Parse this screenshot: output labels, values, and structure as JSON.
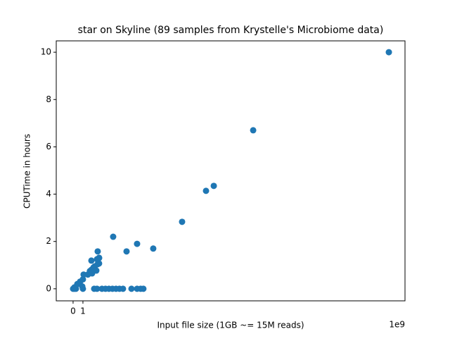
{
  "chart_data": {
    "type": "scatter",
    "title": "star on Skyline (89 samples from Krystelle's Microbiome data)",
    "xlabel": "Input file size (1GB ~= 15M reads)",
    "ylabel": "CPUTime in hours",
    "x_offset_label": "1e9",
    "color": "#1f77b4",
    "xlim": [
      -1.71,
      33.71
    ],
    "ylim": [
      -0.51,
      10.48
    ],
    "xticks": [
      0,
      1
    ],
    "yticks": [
      0,
      2,
      4,
      6,
      8,
      10
    ],
    "x": [
      32.07,
      18.29,
      14.29,
      13.5,
      11.07,
      8.14,
      6.5,
      5.43,
      4.07,
      2.5,
      2.64,
      0,
      0.14,
      0.29,
      1,
      2.14,
      2.43,
      2.93,
      3.29,
      3.64,
      4,
      4.36,
      4.71,
      5.07,
      5.93,
      6.5,
      6.86,
      7.14,
      0.14,
      0.43,
      0.71,
      1,
      1.07,
      0.93,
      1.5,
      1.71,
      1.86,
      1.93,
      2.07,
      2.21,
      2.36,
      2.5,
      2.64,
      1.86,
      2.64,
      2.43
    ],
    "values": [
      10,
      6.7,
      4.35,
      4.14,
      2.83,
      1.7,
      1.9,
      1.58,
      2.2,
      1.58,
      1.3,
      0,
      0,
      0,
      0,
      0,
      0,
      0,
      0,
      0,
      0,
      0,
      0,
      0,
      0,
      0,
      0,
      0,
      0.06,
      0.2,
      0.3,
      0.4,
      0.6,
      0.1,
      0.6,
      0.75,
      0.8,
      0.65,
      0.9,
      0.95,
      0.77,
      1.04,
      1.07,
      1.19,
      1.31,
      1.25
    ]
  }
}
